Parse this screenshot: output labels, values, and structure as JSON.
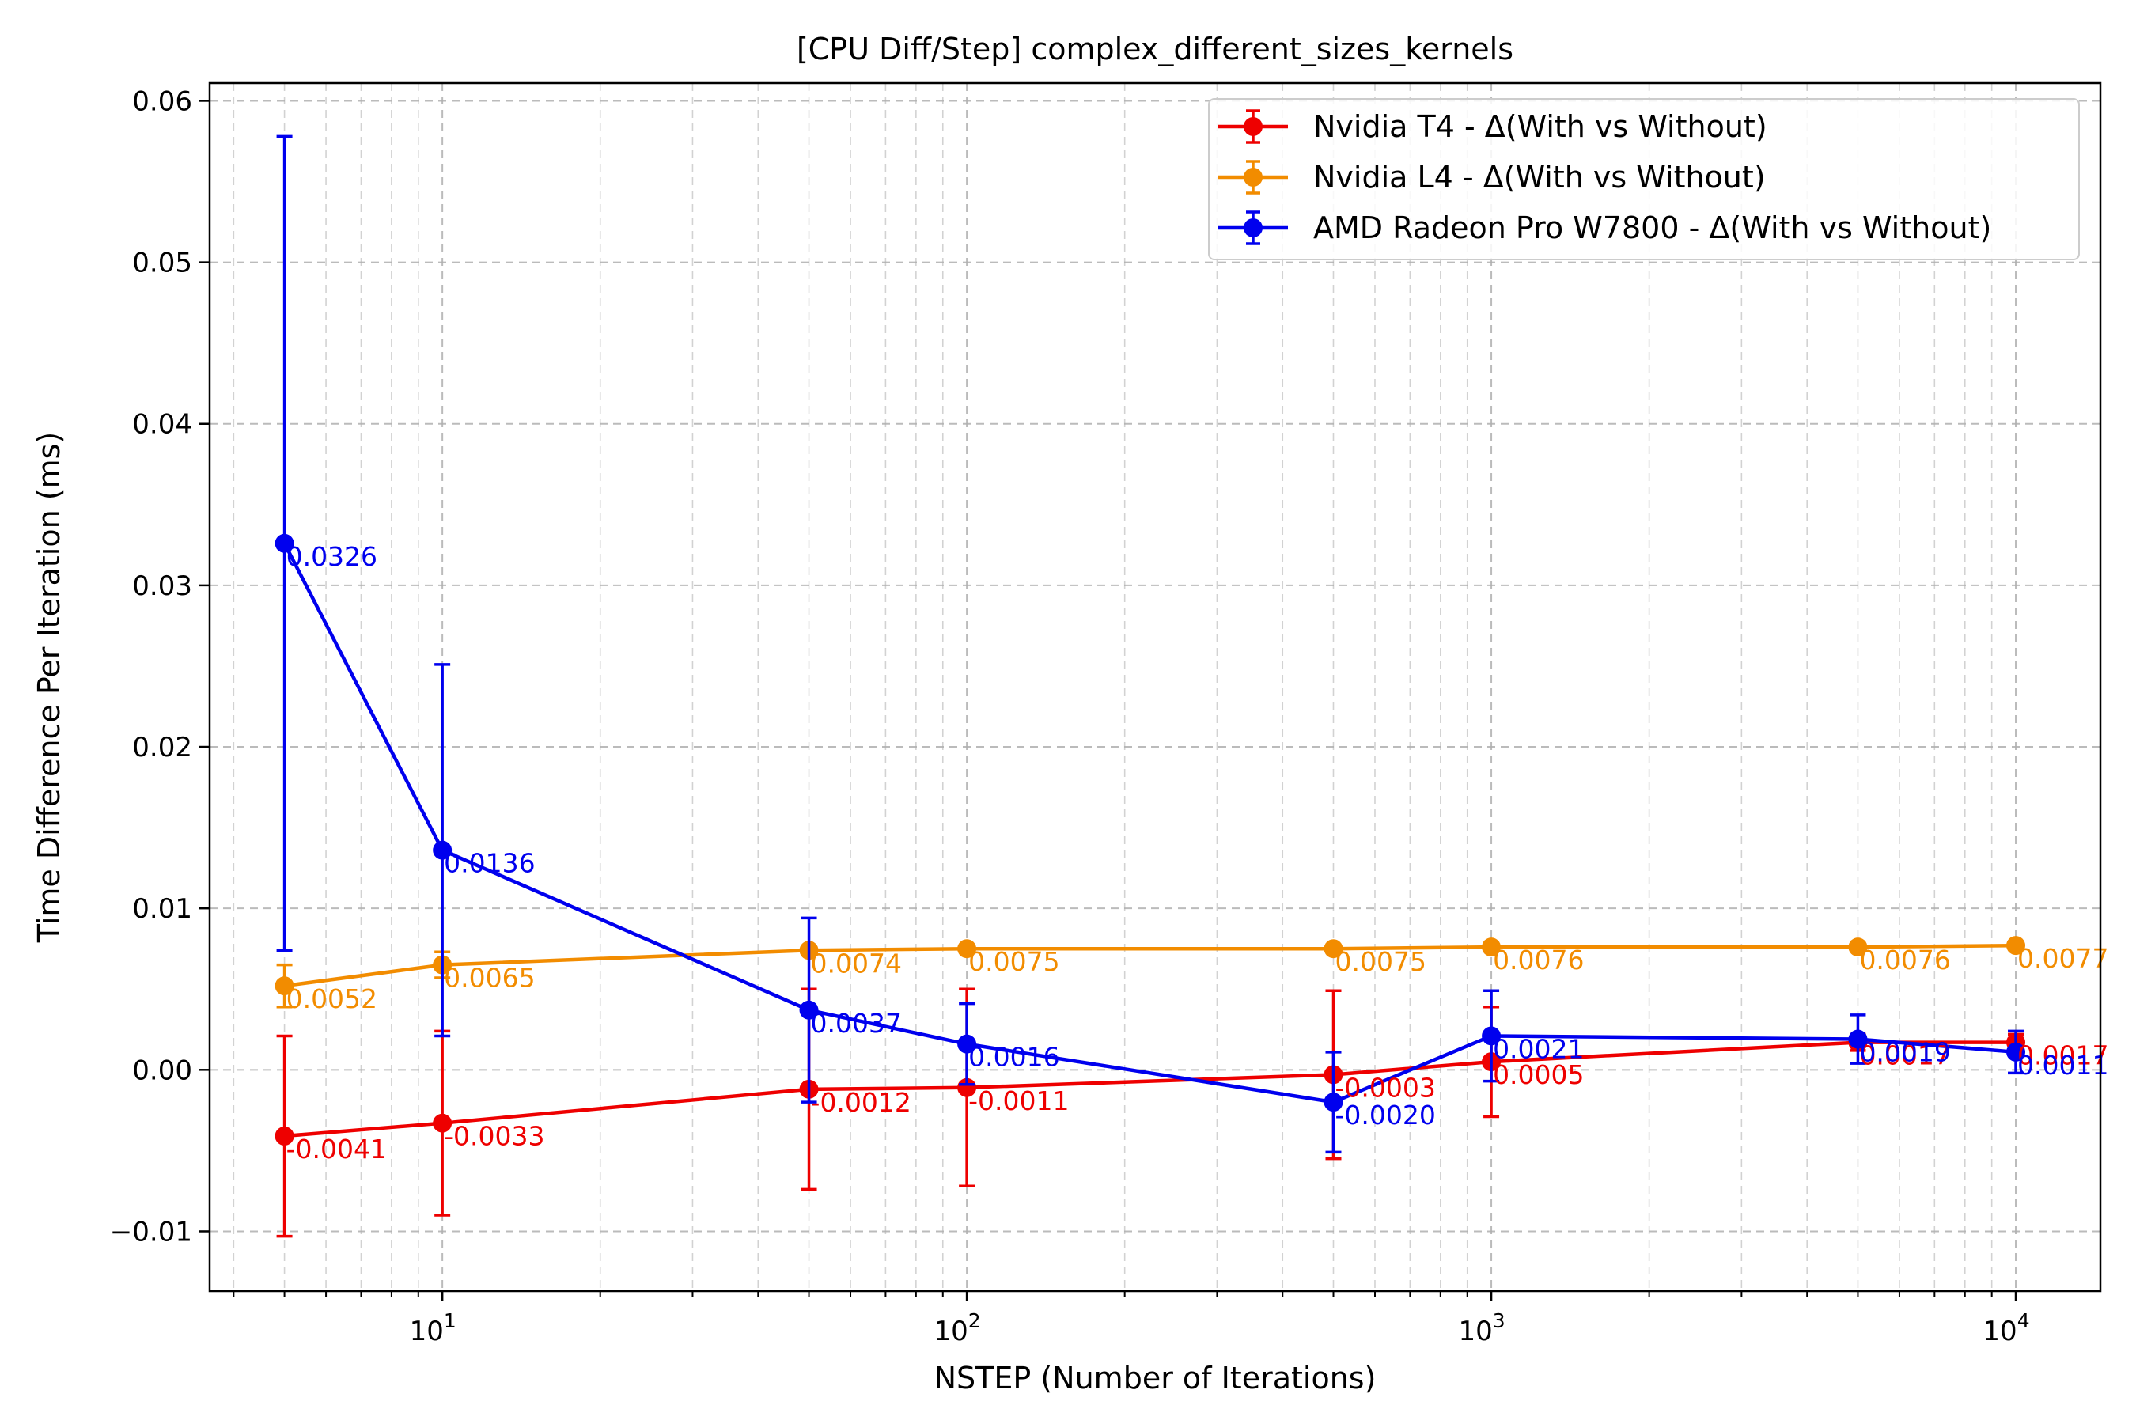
{
  "chart_data": {
    "type": "line",
    "title": "[CPU Diff/Step] complex_different_sizes_kernels",
    "xlabel": "NSTEP (Number of Iterations)",
    "ylabel": "Time Difference Per Iteration (ms)",
    "xscale": "log",
    "xlim": [
      3.6,
      14500
    ],
    "ylim": [
      -0.0137,
      0.0611
    ],
    "x": [
      5,
      10,
      50,
      100,
      500,
      1000,
      5000,
      10000
    ],
    "x_ticks": [
      {
        "value": 10,
        "base": "10",
        "exp": "1"
      },
      {
        "value": 100,
        "base": "10",
        "exp": "2"
      },
      {
        "value": 1000,
        "base": "10",
        "exp": "3"
      },
      {
        "value": 10000,
        "base": "10",
        "exp": "4"
      }
    ],
    "y_ticks": [
      {
        "value": -0.01,
        "label": "−0.01"
      },
      {
        "value": 0.0,
        "label": "0.00"
      },
      {
        "value": 0.01,
        "label": "0.01"
      },
      {
        "value": 0.02,
        "label": "0.02"
      },
      {
        "value": 0.03,
        "label": "0.03"
      },
      {
        "value": 0.04,
        "label": "0.04"
      },
      {
        "value": 0.05,
        "label": "0.05"
      },
      {
        "value": 0.06,
        "label": "0.06"
      }
    ],
    "grid": true,
    "legend_position": "top-right",
    "series": [
      {
        "name": "Nvidia T4 - Δ(With vs Without)",
        "color": "#ee0000",
        "values": [
          -0.0041,
          -0.0033,
          -0.0012,
          -0.0011,
          -0.0003,
          0.0005,
          0.0017,
          0.0017
        ],
        "errors": [
          0.0062,
          0.0057,
          0.0062,
          0.0061,
          0.0052,
          0.0034,
          0.0005,
          0.0005
        ],
        "labels": [
          "-0.0041",
          "-0.0033",
          "-0.0012",
          "-0.0011",
          "-0.0003",
          "0.0005",
          "0.0017",
          "0.0017"
        ]
      },
      {
        "name": "Nvidia L4 - Δ(With vs Without)",
        "color": "#f28c00",
        "values": [
          0.0052,
          0.0065,
          0.0074,
          0.0075,
          0.0075,
          0.0076,
          0.0076,
          0.0077
        ],
        "errors": [
          0.0013,
          0.0008,
          0.0002,
          0.0002,
          0.0002,
          0.0002,
          0.0002,
          0.0002
        ],
        "labels": [
          "0.0052",
          "0.0065",
          "0.0074",
          "0.0075",
          "0.0075",
          "0.0076",
          "0.0076",
          "0.0077"
        ]
      },
      {
        "name": "AMD Radeon Pro W7800 - Δ(With vs Without)",
        "color": "#0000ee",
        "values": [
          0.0326,
          0.0136,
          0.0037,
          0.0016,
          -0.002,
          0.0021,
          0.0019,
          0.0011
        ],
        "errors": [
          0.0252,
          0.0115,
          0.0057,
          0.0025,
          0.0031,
          0.0028,
          0.0015,
          0.0013
        ],
        "labels": [
          "0.0326",
          "0.0136",
          "0.0037",
          "0.0016",
          "-0.0020",
          "0.0021",
          "0.0019",
          "0.0011"
        ]
      }
    ]
  }
}
